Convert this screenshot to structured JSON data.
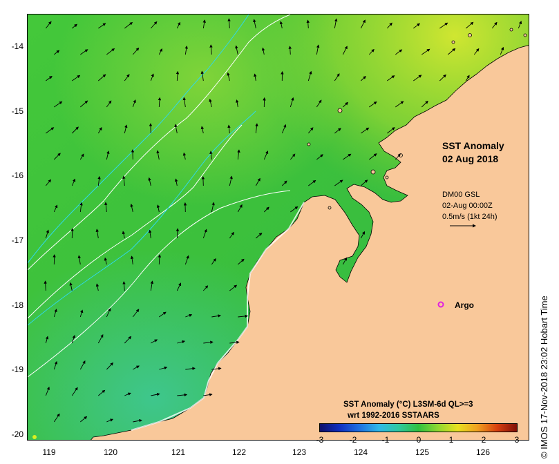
{
  "map": {
    "title_line1": "SST Anomaly",
    "title_line2": "02 Aug 2018",
    "current_label_line1": "DM00 GSL",
    "current_label_line2": "02-Aug 00:00Z",
    "current_label_line3": "0.5m/s (1kt 24h)",
    "argo_label": "Argo",
    "credit": "© IMOS 17-Nov-2018 23:02 Hobart Time",
    "y_ticks": [
      "-14",
      "-15",
      "-16",
      "-17",
      "-18",
      "-19",
      "-20"
    ],
    "x_ticks": [
      "119",
      "120",
      "121",
      "122",
      "123",
      "124",
      "125",
      "126"
    ],
    "colors": {
      "land": "#f9c89a",
      "sea_base": "#3cc43c",
      "argo_marker": "#e020e0",
      "contour_cyan": "#30d8e8",
      "contour_white": "#ffffff"
    }
  },
  "colorbar": {
    "title": "SST Anomaly (°C) L3SM-6d QL>=3",
    "subtitle": "wrt 1992-2016 SSTAARS",
    "ticks": [
      "-3",
      "-2",
      "-1",
      "0",
      "1",
      "2",
      "3"
    ]
  }
}
